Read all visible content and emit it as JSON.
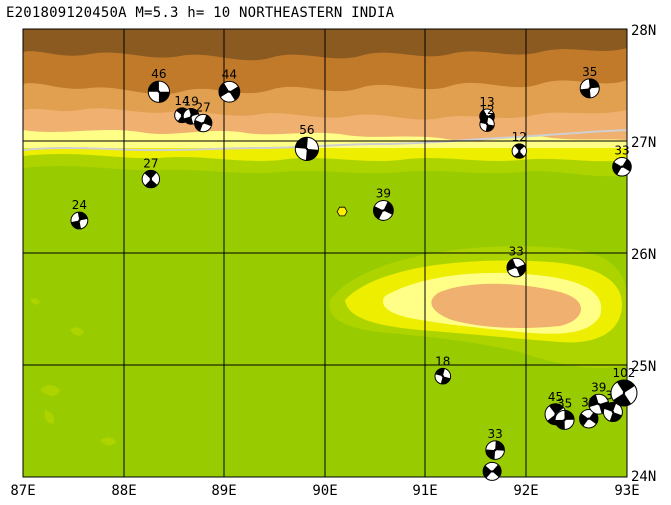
{
  "header": {
    "title": "E201809120450A M=5.3 h= 10 NORTHEASTERN INDIA"
  },
  "axes": {
    "lon_labels": [
      "87E",
      "88E",
      "89E",
      "90E",
      "91E",
      "92E",
      "93E"
    ],
    "lat_labels": [
      "28N",
      "27N",
      "26N",
      "25N",
      "24N"
    ],
    "lon_range": [
      87,
      93
    ],
    "lat_range": [
      24,
      28
    ]
  },
  "colors": {
    "lowland": "#99cc00",
    "green2": "#aed400",
    "yellow": "#eeee00",
    "lightyellow": "#ffff88",
    "sand": "#f0b070",
    "tan": "#e0a050",
    "brown": "#c07a2a",
    "darkbrown": "#8a5a20",
    "grey_ridge": "#c9b8a0",
    "border": "#cfcfcf",
    "epicenter": "#ffee00"
  },
  "epicenter": {
    "lon": 90.17,
    "lat": 26.37
  },
  "chart_data": {
    "type": "scatter",
    "title": "E201809120450A M=5.3 h= 10 NORTHEASTERN INDIA",
    "x_axis": "longitude",
    "y_axis": "latitude",
    "xlim": [
      87,
      93
    ],
    "ylim": [
      24,
      28
    ],
    "grid": true,
    "events": [
      {
        "depth": "46",
        "lon": 88.35,
        "lat": 27.44
      },
      {
        "depth": "14",
        "lon": 88.58,
        "lat": 27.23
      },
      {
        "depth": "19",
        "lon": 88.67,
        "lat": 27.22
      },
      {
        "depth": "27",
        "lon": 88.79,
        "lat": 27.16
      },
      {
        "depth": "44",
        "lon": 89.05,
        "lat": 27.44
      },
      {
        "depth": "56",
        "lon": 89.82,
        "lat": 26.93
      },
      {
        "depth": "27",
        "lon": 88.27,
        "lat": 26.66
      },
      {
        "depth": "24",
        "lon": 87.56,
        "lat": 26.29
      },
      {
        "depth": "39",
        "lon": 90.58,
        "lat": 26.38
      },
      {
        "depth": "13",
        "lon": 91.61,
        "lat": 27.22
      },
      {
        "depth": "12",
        "lon": 91.61,
        "lat": 27.15
      },
      {
        "depth": "12",
        "lon": 91.93,
        "lat": 26.91
      },
      {
        "depth": "35",
        "lon": 92.63,
        "lat": 27.47
      },
      {
        "depth": "33",
        "lon": 92.95,
        "lat": 26.77
      },
      {
        "depth": "33",
        "lon": 91.9,
        "lat": 25.87
      },
      {
        "depth": "18",
        "lon": 91.17,
        "lat": 24.9
      },
      {
        "depth": "45",
        "lon": 92.29,
        "lat": 24.56
      },
      {
        "depth": "35",
        "lon": 92.38,
        "lat": 24.51
      },
      {
        "depth": "32",
        "lon": 92.62,
        "lat": 24.52
      },
      {
        "depth": "39",
        "lon": 92.72,
        "lat": 24.65
      },
      {
        "depth": "35",
        "lon": 92.86,
        "lat": 24.58
      },
      {
        "depth": "102",
        "lon": 92.97,
        "lat": 24.75
      },
      {
        "depth": "33",
        "lon": 91.69,
        "lat": 24.24
      },
      {
        "depth": "",
        "lon": 91.66,
        "lat": 24.05
      }
    ]
  }
}
